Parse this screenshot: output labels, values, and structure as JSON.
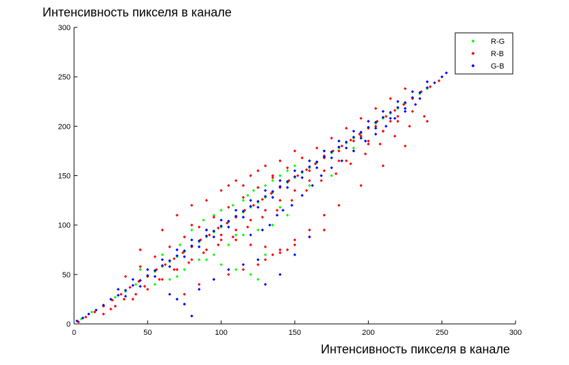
{
  "chart_data": {
    "type": "scatter",
    "title": "",
    "xlabel": "Интенсивность пикселя в канале",
    "ylabel": "Интенсивность пикселя в канале",
    "xlim": [
      0,
      300
    ],
    "ylim": [
      0,
      300
    ],
    "xticks": [
      0,
      50,
      100,
      150,
      200,
      250,
      300
    ],
    "yticks": [
      0,
      50,
      100,
      150,
      200,
      250,
      300
    ],
    "grid": false,
    "legend_position": "top-right",
    "series": [
      {
        "name": "R-G",
        "color": "#00ff00",
        "marker": "diamond",
        "x": [
          5,
          12,
          20,
          28,
          35,
          42,
          50,
          55,
          60,
          65,
          70,
          75,
          80,
          85,
          90,
          95,
          100,
          105,
          110,
          115,
          120,
          125,
          130,
          135,
          140,
          145,
          150,
          155,
          160,
          165,
          170,
          175,
          180,
          185,
          190,
          195,
          200,
          205,
          210,
          215,
          220,
          225,
          230,
          235,
          240,
          60,
          72,
          80,
          88,
          95,
          100,
          108,
          115,
          118,
          122,
          125,
          130,
          135,
          140,
          145,
          150,
          160,
          170,
          180,
          90,
          100,
          110,
          120,
          125,
          130,
          55,
          65,
          75,
          85,
          95,
          105,
          115,
          125,
          135,
          145,
          45,
          70,
          110,
          140,
          160,
          175,
          190,
          210
        ],
        "y": [
          5,
          12,
          18,
          27,
          33,
          40,
          48,
          53,
          58,
          63,
          68,
          73,
          78,
          83,
          88,
          93,
          98,
          103,
          108,
          113,
          118,
          123,
          128,
          133,
          138,
          143,
          148,
          153,
          158,
          163,
          168,
          173,
          178,
          183,
          188,
          193,
          198,
          203,
          208,
          213,
          218,
          223,
          228,
          233,
          238,
          70,
          80,
          95,
          105,
          110,
          115,
          120,
          125,
          130,
          135,
          138,
          140,
          145,
          150,
          155,
          160,
          165,
          175,
          185,
          65,
          60,
          55,
          50,
          45,
          70,
          40,
          45,
          55,
          65,
          70,
          80,
          90,
          95,
          100,
          110,
          55,
          48,
          90,
          118,
          140,
          150,
          178,
          195
        ]
      },
      {
        "name": "R-B",
        "color": "#ff0000",
        "marker": "diamond",
        "x": [
          3,
          8,
          14,
          20,
          26,
          32,
          38,
          44,
          50,
          56,
          62,
          68,
          74,
          80,
          86,
          92,
          98,
          104,
          110,
          116,
          122,
          128,
          134,
          140,
          146,
          152,
          158,
          164,
          170,
          176,
          182,
          188,
          194,
          200,
          206,
          212,
          218,
          224,
          230,
          236,
          242,
          248,
          35,
          45,
          55,
          65,
          75,
          85,
          95,
          105,
          115,
          125,
          135,
          145,
          155,
          165,
          175,
          185,
          195,
          205,
          215,
          225,
          40,
          50,
          60,
          70,
          80,
          90,
          100,
          110,
          120,
          130,
          140,
          150,
          160,
          170,
          180,
          190,
          200,
          210,
          220,
          230,
          20,
          28,
          34,
          42,
          48,
          58,
          68,
          78,
          88,
          98,
          108,
          118,
          128,
          138,
          148,
          158,
          168,
          178,
          188,
          198,
          208,
          218,
          228,
          238,
          25,
          45,
          60,
          70,
          80,
          90,
          100,
          105,
          110,
          115,
          120,
          125,
          130,
          135,
          140,
          150,
          160,
          170,
          180,
          185,
          190,
          195,
          200,
          205,
          210,
          215,
          220,
          75,
          85,
          95,
          105,
          115,
          125,
          130,
          135,
          140,
          145,
          150,
          160,
          170,
          80,
          90,
          100,
          110,
          120,
          130,
          140,
          150,
          160,
          170,
          180,
          195,
          210,
          225,
          240
        ],
        "y": [
          2,
          7,
          12,
          18,
          24,
          30,
          37,
          43,
          48,
          55,
          60,
          66,
          72,
          78,
          85,
          90,
          97,
          102,
          108,
          115,
          120,
          126,
          132,
          138,
          145,
          150,
          156,
          162,
          168,
          175,
          180,
          186,
          192,
          198,
          205,
          210,
          216,
          222,
          228,
          235,
          240,
          246,
          48,
          58,
          68,
          78,
          88,
          98,
          108,
          118,
          128,
          138,
          148,
          158,
          168,
          178,
          188,
          198,
          208,
          218,
          228,
          238,
          25,
          35,
          45,
          55,
          65,
          75,
          85,
          95,
          105,
          115,
          125,
          135,
          145,
          155,
          165,
          175,
          185,
          195,
          205,
          215,
          10,
          18,
          25,
          30,
          38,
          45,
          55,
          62,
          72,
          80,
          88,
          98,
          108,
          115,
          125,
          135,
          145,
          152,
          162,
          172,
          182,
          190,
          200,
          210,
          15,
          75,
          95,
          110,
          120,
          125,
          135,
          140,
          145,
          140,
          150,
          155,
          160,
          150,
          165,
          175,
          155,
          170,
          175,
          165,
          185,
          190,
          182,
          200,
          195,
          205,
          210,
          30,
          40,
          45,
          50,
          55,
          60,
          65,
          70,
          72,
          75,
          80,
          88,
          95,
          100,
          95,
          90,
          85,
          80,
          78,
          75,
          85,
          95,
          110,
          120,
          140,
          160,
          180,
          205
        ],
        "extra_x": [],
        "extra_y": []
      },
      {
        "name": "G-B",
        "color": "#0000ff",
        "marker": "diamond",
        "x": [
          2,
          6,
          10,
          15,
          20,
          25,
          30,
          35,
          40,
          45,
          50,
          55,
          60,
          65,
          70,
          75,
          80,
          85,
          90,
          95,
          100,
          105,
          110,
          115,
          120,
          125,
          130,
          135,
          140,
          145,
          150,
          155,
          160,
          165,
          170,
          175,
          180,
          185,
          190,
          195,
          200,
          205,
          210,
          215,
          220,
          225,
          230,
          235,
          240,
          245,
          250,
          253,
          30,
          40,
          50,
          60,
          70,
          80,
          90,
          100,
          110,
          120,
          130,
          140,
          150,
          160,
          170,
          180,
          190,
          200,
          210,
          220,
          230,
          240,
          35,
          45,
          55,
          65,
          75,
          85,
          95,
          105,
          115,
          125,
          135,
          145,
          155,
          165,
          175,
          185,
          195,
          205,
          215,
          225,
          235,
          65,
          70,
          75,
          80,
          85,
          95,
          105,
          115,
          125,
          130,
          140,
          150,
          160,
          120,
          128,
          133,
          138,
          142,
          148,
          155,
          162,
          168,
          175,
          182,
          190,
          198,
          205,
          212,
          218,
          225,
          232
        ],
        "y": [
          3,
          6,
          10,
          14,
          19,
          25,
          29,
          34,
          39,
          44,
          49,
          54,
          59,
          64,
          69,
          74,
          79,
          84,
          89,
          94,
          99,
          104,
          109,
          114,
          119,
          124,
          129,
          134,
          139,
          144,
          149,
          154,
          159,
          164,
          169,
          174,
          179,
          184,
          189,
          194,
          199,
          204,
          209,
          214,
          219,
          224,
          229,
          234,
          239,
          244,
          250,
          254,
          35,
          45,
          55,
          65,
          75,
          85,
          95,
          105,
          115,
          125,
          135,
          145,
          155,
          165,
          175,
          185,
          195,
          205,
          215,
          225,
          235,
          245,
          28,
          38,
          48,
          58,
          68,
          78,
          88,
          98,
          108,
          118,
          128,
          138,
          148,
          158,
          168,
          178,
          188,
          198,
          208,
          218,
          228,
          30,
          25,
          20,
          8,
          35,
          45,
          55,
          60,
          65,
          40,
          50,
          70,
          88,
          90,
          95,
          100,
          110,
          115,
          120,
          130,
          140,
          150,
          158,
          165,
          175,
          185,
          192,
          200,
          208,
          215,
          222
        ]
      }
    ]
  }
}
